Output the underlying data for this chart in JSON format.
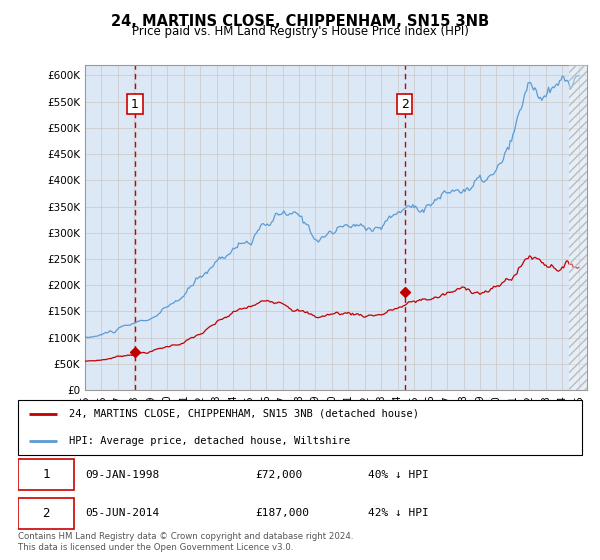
{
  "title": "24, MARTINS CLOSE, CHIPPENHAM, SN15 3NB",
  "subtitle": "Price paid vs. HM Land Registry's House Price Index (HPI)",
  "ylim": [
    0,
    620000
  ],
  "yticks": [
    0,
    50000,
    100000,
    150000,
    200000,
    250000,
    300000,
    350000,
    400000,
    450000,
    500000,
    550000,
    600000
  ],
  "xlim_start": 1995.0,
  "xlim_end": 2025.5,
  "background_color": "#dce8f5",
  "sale1_date": 1998.04,
  "sale1_price": 72000,
  "sale2_date": 2014.42,
  "sale2_price": 187000,
  "legend_line1": "24, MARTINS CLOSE, CHIPPENHAM, SN15 3NB (detached house)",
  "legend_line2": "HPI: Average price, detached house, Wiltshire",
  "hpi_color": "#5b9bd5",
  "price_color": "#c00000",
  "vline_color": "#cc0000",
  "grid_color": "#cccccc",
  "footer": "Contains HM Land Registry data © Crown copyright and database right 2024.\nThis data is licensed under the Open Government Licence v3.0."
}
